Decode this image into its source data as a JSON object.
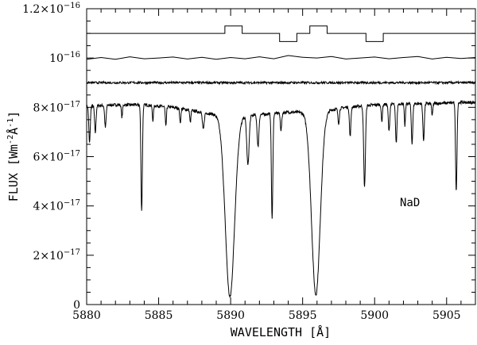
{
  "chart_data": {
    "type": "line",
    "xlabel": "WAVELENGTH [Å]",
    "ylabel": "FLUX [Wm",
    "ylabel_exp": "-2",
    "ylabel_unit": "Å",
    "ylabel_exp2": "-1",
    "ylabel_close": "]",
    "annotation": "NaD",
    "xlim": [
      5880,
      5907
    ],
    "ylim": [
      0,
      1.2e-16
    ],
    "x_ticks": [
      {
        "value": 5880,
        "label": "5880"
      },
      {
        "value": 5885,
        "label": "5885"
      },
      {
        "value": 5890,
        "label": "5890"
      },
      {
        "value": 5895,
        "label": "5895"
      },
      {
        "value": 5900,
        "label": "5900"
      },
      {
        "value": 5905,
        "label": "5905"
      }
    ],
    "y_ticks": [
      {
        "value": 0,
        "mant": "0",
        "exp": ""
      },
      {
        "value": 2e-17,
        "mant": "2×10",
        "exp": "−17"
      },
      {
        "value": 4e-17,
        "mant": "4×10",
        "exp": "−17"
      },
      {
        "value": 6e-17,
        "mant": "6×10",
        "exp": "−17"
      },
      {
        "value": 8e-17,
        "mant": "8×10",
        "exp": "−17"
      },
      {
        "value": 1e-16,
        "mant": "10",
        "exp": "−16"
      },
      {
        "value": 1.2e-16,
        "mant": "1.2×10",
        "exp": "−16"
      }
    ],
    "series": [
      {
        "kind": "spectrum",
        "continuum": [
          [
            5880.0,
            8.05e-17
          ],
          [
            5882.0,
            8.1e-17
          ],
          [
            5884.0,
            8.1e-17
          ],
          [
            5886.0,
            8e-17
          ],
          [
            5888.0,
            7.8e-17
          ],
          [
            5890.0,
            7.6e-17
          ],
          [
            5892.0,
            7.7e-17
          ],
          [
            5894.0,
            7.8e-17
          ],
          [
            5896.0,
            7.8e-17
          ],
          [
            5898.0,
            8e-17
          ],
          [
            5900.0,
            8.1e-17
          ],
          [
            5902.0,
            8.15e-17
          ],
          [
            5904.0,
            8.15e-17
          ],
          [
            5906.0,
            8.2e-17
          ],
          [
            5907.0,
            8.2e-17
          ]
        ],
        "lines": [
          {
            "center": 5889.95,
            "depth": 7.3e-17,
            "width": 0.32
          },
          {
            "center": 5895.92,
            "depth": 7.4e-17,
            "width": 0.3
          },
          {
            "center": 5883.82,
            "depth": 4.3e-17,
            "width": 0.05
          },
          {
            "center": 5892.88,
            "depth": 4.3e-17,
            "width": 0.05
          },
          {
            "center": 5899.3,
            "depth": 3.3e-17,
            "width": 0.06
          },
          {
            "center": 5905.67,
            "depth": 3.6e-17,
            "width": 0.05
          },
          {
            "center": 5880.2,
            "depth": 1.5e-17,
            "width": 0.05
          },
          {
            "center": 5880.6,
            "depth": 1.1e-17,
            "width": 0.05
          },
          {
            "center": 5881.3,
            "depth": 9e-18,
            "width": 0.05
          },
          {
            "center": 5882.45,
            "depth": 5e-18,
            "width": 0.04
          },
          {
            "center": 5884.6,
            "depth": 6e-18,
            "width": 0.04
          },
          {
            "center": 5885.5,
            "depth": 8e-18,
            "width": 0.04
          },
          {
            "center": 5886.5,
            "depth": 6e-18,
            "width": 0.04
          },
          {
            "center": 5887.2,
            "depth": 5e-18,
            "width": 0.04
          },
          {
            "center": 5888.1,
            "depth": 7e-18,
            "width": 0.06
          },
          {
            "center": 5891.2,
            "depth": 2e-17,
            "width": 0.08
          },
          {
            "center": 5891.9,
            "depth": 1.3e-17,
            "width": 0.06
          },
          {
            "center": 5893.5,
            "depth": 7e-18,
            "width": 0.05
          },
          {
            "center": 5897.5,
            "depth": 6e-18,
            "width": 0.05
          },
          {
            "center": 5898.3,
            "depth": 1.2e-17,
            "width": 0.05
          },
          {
            "center": 5900.5,
            "depth": 7e-18,
            "width": 0.04
          },
          {
            "center": 5901.0,
            "depth": 1.1e-17,
            "width": 0.05
          },
          {
            "center": 5901.5,
            "depth": 1.6e-17,
            "width": 0.05
          },
          {
            "center": 5902.1,
            "depth": 9e-18,
            "width": 0.04
          },
          {
            "center": 5902.6,
            "depth": 1.6e-17,
            "width": 0.05
          },
          {
            "center": 5903.4,
            "depth": 1.5e-17,
            "width": 0.05
          },
          {
            "center": 5904.0,
            "depth": 5e-18,
            "width": 0.04
          }
        ],
        "noise": 6e-19
      },
      {
        "kind": "noisy-flat",
        "level": 9e-17,
        "noise": 4.5e-19
      },
      {
        "kind": "smooth",
        "points": [
          [
            5880.0,
            9.95e-17
          ],
          [
            5881.0,
            1.002e-16
          ],
          [
            5882.0,
            9.95e-17
          ],
          [
            5883.0,
            1.005e-16
          ],
          [
            5884.0,
            9.97e-17
          ],
          [
            5885.0,
            1e-16
          ],
          [
            5886.0,
            1.004e-16
          ],
          [
            5887.0,
            9.96e-17
          ],
          [
            5888.0,
            1.003e-16
          ],
          [
            5889.0,
            9.95e-17
          ],
          [
            5890.0,
            1.002e-16
          ],
          [
            5891.0,
            9.97e-17
          ],
          [
            5892.0,
            1.005e-16
          ],
          [
            5893.0,
            9.97e-17
          ],
          [
            5894.0,
            1.01e-16
          ],
          [
            5895.0,
            1.003e-16
          ],
          [
            5896.0,
            1e-16
          ],
          [
            5897.0,
            1.006e-16
          ],
          [
            5898.0,
            9.96e-17
          ],
          [
            5899.0,
            1e-16
          ],
          [
            5900.0,
            1.004e-16
          ],
          [
            5901.0,
            9.97e-17
          ],
          [
            5902.0,
            1.002e-16
          ],
          [
            5903.0,
            1.006e-16
          ],
          [
            5904.0,
            9.96e-17
          ],
          [
            5905.0,
            1.003e-16
          ],
          [
            5906.0,
            9.98e-17
          ],
          [
            5907.0,
            1.002e-16
          ]
        ]
      },
      {
        "kind": "step",
        "points": [
          [
            5880.0,
            1.1e-16
          ],
          [
            5889.6,
            1.1e-16
          ],
          [
            5889.6,
            1.13e-16
          ],
          [
            5890.8,
            1.13e-16
          ],
          [
            5890.8,
            1.1e-16
          ],
          [
            5893.4,
            1.1e-16
          ],
          [
            5893.4,
            1.067e-16
          ],
          [
            5894.6,
            1.067e-16
          ],
          [
            5894.6,
            1.1e-16
          ],
          [
            5895.5,
            1.1e-16
          ],
          [
            5895.5,
            1.13e-16
          ],
          [
            5896.7,
            1.13e-16
          ],
          [
            5896.7,
            1.1e-16
          ],
          [
            5899.4,
            1.1e-16
          ],
          [
            5899.4,
            1.067e-16
          ],
          [
            5900.6,
            1.067e-16
          ],
          [
            5900.6,
            1.1e-16
          ],
          [
            5907.0,
            1.1e-16
          ]
        ]
      }
    ]
  }
}
